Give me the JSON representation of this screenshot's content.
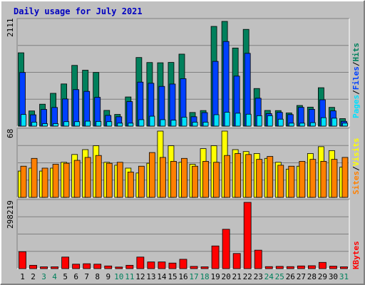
{
  "colors": {
    "frame": "#ffffff",
    "background": "#c0c0c0",
    "plot": "#c0c0c0",
    "grid": "#808080",
    "title": "#0000c0",
    "hits": "#00805c",
    "files": "#0040ff",
    "pages": "#00e0ff",
    "visits": "#ffff00",
    "sites": "#ff8000",
    "kbytes": "#ff0000",
    "weekday_label": "#000000",
    "weekend_label": "#00805c"
  },
  "chart_data": [
    {
      "type": "bar",
      "title": "Daily usage for July 2021",
      "y_max_label": "2111",
      "ylim": [
        0,
        2111
      ],
      "grid": true,
      "legend_placement": "right",
      "categories": [
        "1",
        "2",
        "3",
        "4",
        "5",
        "6",
        "7",
        "8",
        "9",
        "10",
        "11",
        "12",
        "13",
        "14",
        "15",
        "16",
        "17",
        "18",
        "19",
        "20",
        "21",
        "22",
        "23",
        "24",
        "25",
        "26",
        "27",
        "28",
        "29",
        "30",
        "31"
      ],
      "weekend_days": [
        "3",
        "4",
        "10",
        "11",
        "17",
        "18",
        "24",
        "25",
        "31"
      ],
      "series": [
        {
          "name": "Hits",
          "color": "#00805c",
          "values": [
            1478,
            306,
            442,
            661,
            850,
            1224,
            1127,
            1082,
            317,
            236,
            588,
            1383,
            1282,
            1277,
            1284,
            1451,
            275,
            314,
            2010,
            2111,
            1574,
            1950,
            758,
            316,
            313,
            265,
            416,
            383,
            774,
            378,
            151
          ]
        },
        {
          "name": "Files",
          "color": "#0040ff",
          "values": [
            1081,
            228,
            337,
            376,
            547,
            736,
            701,
            580,
            216,
            189,
            495,
            887,
            864,
            801,
            848,
            956,
            189,
            272,
            1305,
            1706,
            1008,
            1467,
            562,
            252,
            277,
            233,
            378,
            339,
            531,
            307,
            97
          ]
        },
        {
          "name": "Pages",
          "color": "#00e0ff",
          "values": [
            235,
            80,
            50,
            50,
            90,
            90,
            100,
            95,
            90,
            60,
            60,
            130,
            200,
            130,
            120,
            180,
            80,
            80,
            230,
            280,
            260,
            240,
            210,
            210,
            140,
            60,
            60,
            70,
            170,
            160,
            60
          ]
        }
      ],
      "axis_labels": [
        "Pages",
        "Files",
        "Hits"
      ]
    },
    {
      "type": "bar",
      "y_max_label": "68",
      "ylim": [
        0,
        68
      ],
      "grid": true,
      "legend_placement": "right",
      "categories": [
        "1",
        "2",
        "3",
        "4",
        "5",
        "6",
        "7",
        "8",
        "9",
        "10",
        "11",
        "12",
        "13",
        "14",
        "15",
        "16",
        "17",
        "18",
        "19",
        "20",
        "21",
        "22",
        "23",
        "24",
        "25",
        "26",
        "27",
        "28",
        "29",
        "30",
        "31"
      ],
      "series": [
        {
          "name": "Visits",
          "color": "#ffff00",
          "values": [
            27,
            30,
            27,
            30,
            36,
            44,
            49,
            53,
            36,
            33,
            30,
            25,
            35,
            68,
            53,
            36,
            34,
            50,
            53,
            68,
            49,
            47,
            45,
            40,
            36,
            29,
            32,
            45,
            52,
            48,
            31
          ]
        },
        {
          "name": "Sites",
          "color": "#ff8000",
          "values": [
            32,
            40,
            30,
            34,
            35,
            38,
            41,
            43,
            35,
            36,
            26,
            32,
            46,
            41,
            37,
            40,
            32,
            37,
            36,
            43,
            45,
            44,
            39,
            42,
            33,
            32,
            37,
            39,
            37,
            39,
            41
          ]
        }
      ],
      "axis_labels": [
        "Sites",
        "Visits"
      ]
    },
    {
      "type": "bar",
      "y_max_label": "298219",
      "ylim": [
        0,
        298219
      ],
      "grid": true,
      "legend_placement": "right",
      "categories": [
        "1",
        "2",
        "3",
        "4",
        "5",
        "6",
        "7",
        "8",
        "9",
        "10",
        "11",
        "12",
        "13",
        "14",
        "15",
        "16",
        "17",
        "18",
        "19",
        "20",
        "21",
        "22",
        "23",
        "24",
        "25",
        "26",
        "27",
        "28",
        "29",
        "30",
        "31"
      ],
      "series": [
        {
          "name": "KBytes",
          "color": "#ff0000",
          "values": [
            76000,
            15000,
            8000,
            8000,
            52000,
            20000,
            22000,
            20000,
            12000,
            7000,
            15000,
            52000,
            30000,
            30000,
            25000,
            42000,
            10000,
            8000,
            102000,
            177000,
            68000,
            298219,
            83000,
            9000,
            10000,
            9000,
            12000,
            13000,
            28000,
            11000,
            8000
          ]
        }
      ],
      "axis_labels": [
        "KBytes"
      ]
    }
  ]
}
